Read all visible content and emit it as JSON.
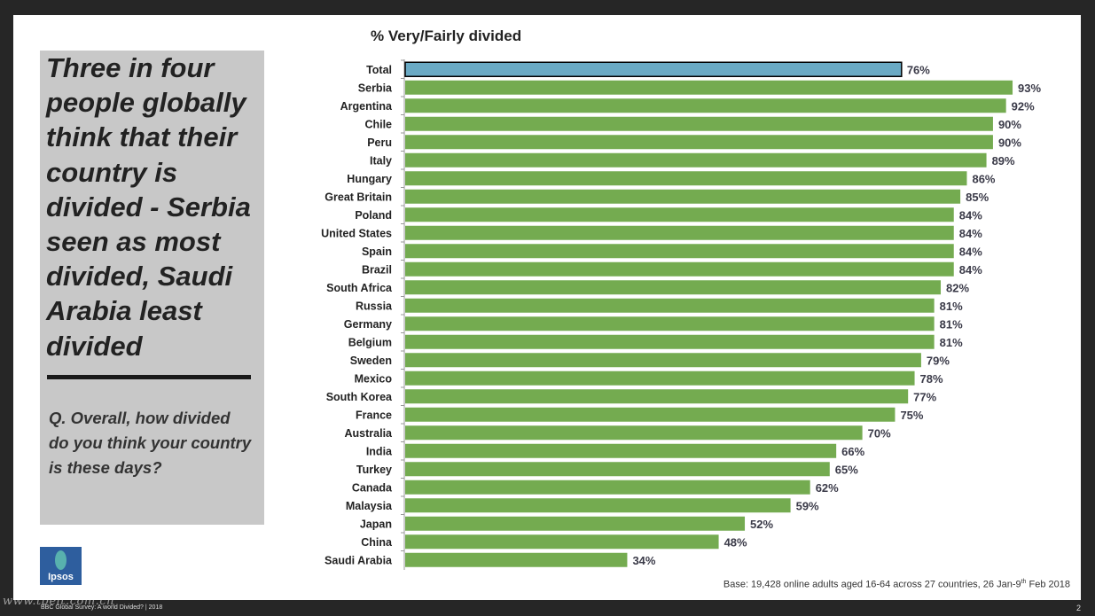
{
  "headline": "Three in four people globally think that their country is divided - Serbia seen as most divided, Saudi Arabia least divided",
  "question": "Q. Overall, how divided do you think your country is these days?",
  "logo_text": "Ipsos",
  "base_note": "Base: 19,428 online adults aged 16-64 across 27 countries,  26 Jan-9",
  "base_note_sup": "th",
  "base_note_end": " Feb 2018",
  "footer_left": "BBC Global Survey: A world Divided? | 2018",
  "watermark": "www.tbelt.com.cn",
  "page_number": "2",
  "colors": {
    "total_bar": "#6aaac4",
    "country_bar": "#74ab50",
    "value_label": "#3a3a48"
  },
  "chart_data": {
    "type": "bar",
    "orientation": "horizontal",
    "title": "% Very/Fairly divided",
    "xlabel": "",
    "ylabel": "",
    "xlim": [
      0,
      100
    ],
    "value_suffix": "%",
    "highlight_category": "Total",
    "categories": [
      "Total",
      "Serbia",
      "Argentina",
      "Chile",
      "Peru",
      "Italy",
      "Hungary",
      "Great Britain",
      "Poland",
      "United States",
      "Spain",
      "Brazil",
      "South Africa",
      "Russia",
      "Germany",
      "Belgium",
      "Sweden",
      "Mexico",
      "South Korea",
      "France",
      "Australia",
      "India",
      "Turkey",
      "Canada",
      "Malaysia",
      "Japan",
      "China",
      "Saudi Arabia"
    ],
    "values": [
      76,
      93,
      92,
      90,
      90,
      89,
      86,
      85,
      84,
      84,
      84,
      84,
      82,
      81,
      81,
      81,
      79,
      78,
      77,
      75,
      70,
      66,
      65,
      62,
      59,
      52,
      48,
      34
    ]
  }
}
